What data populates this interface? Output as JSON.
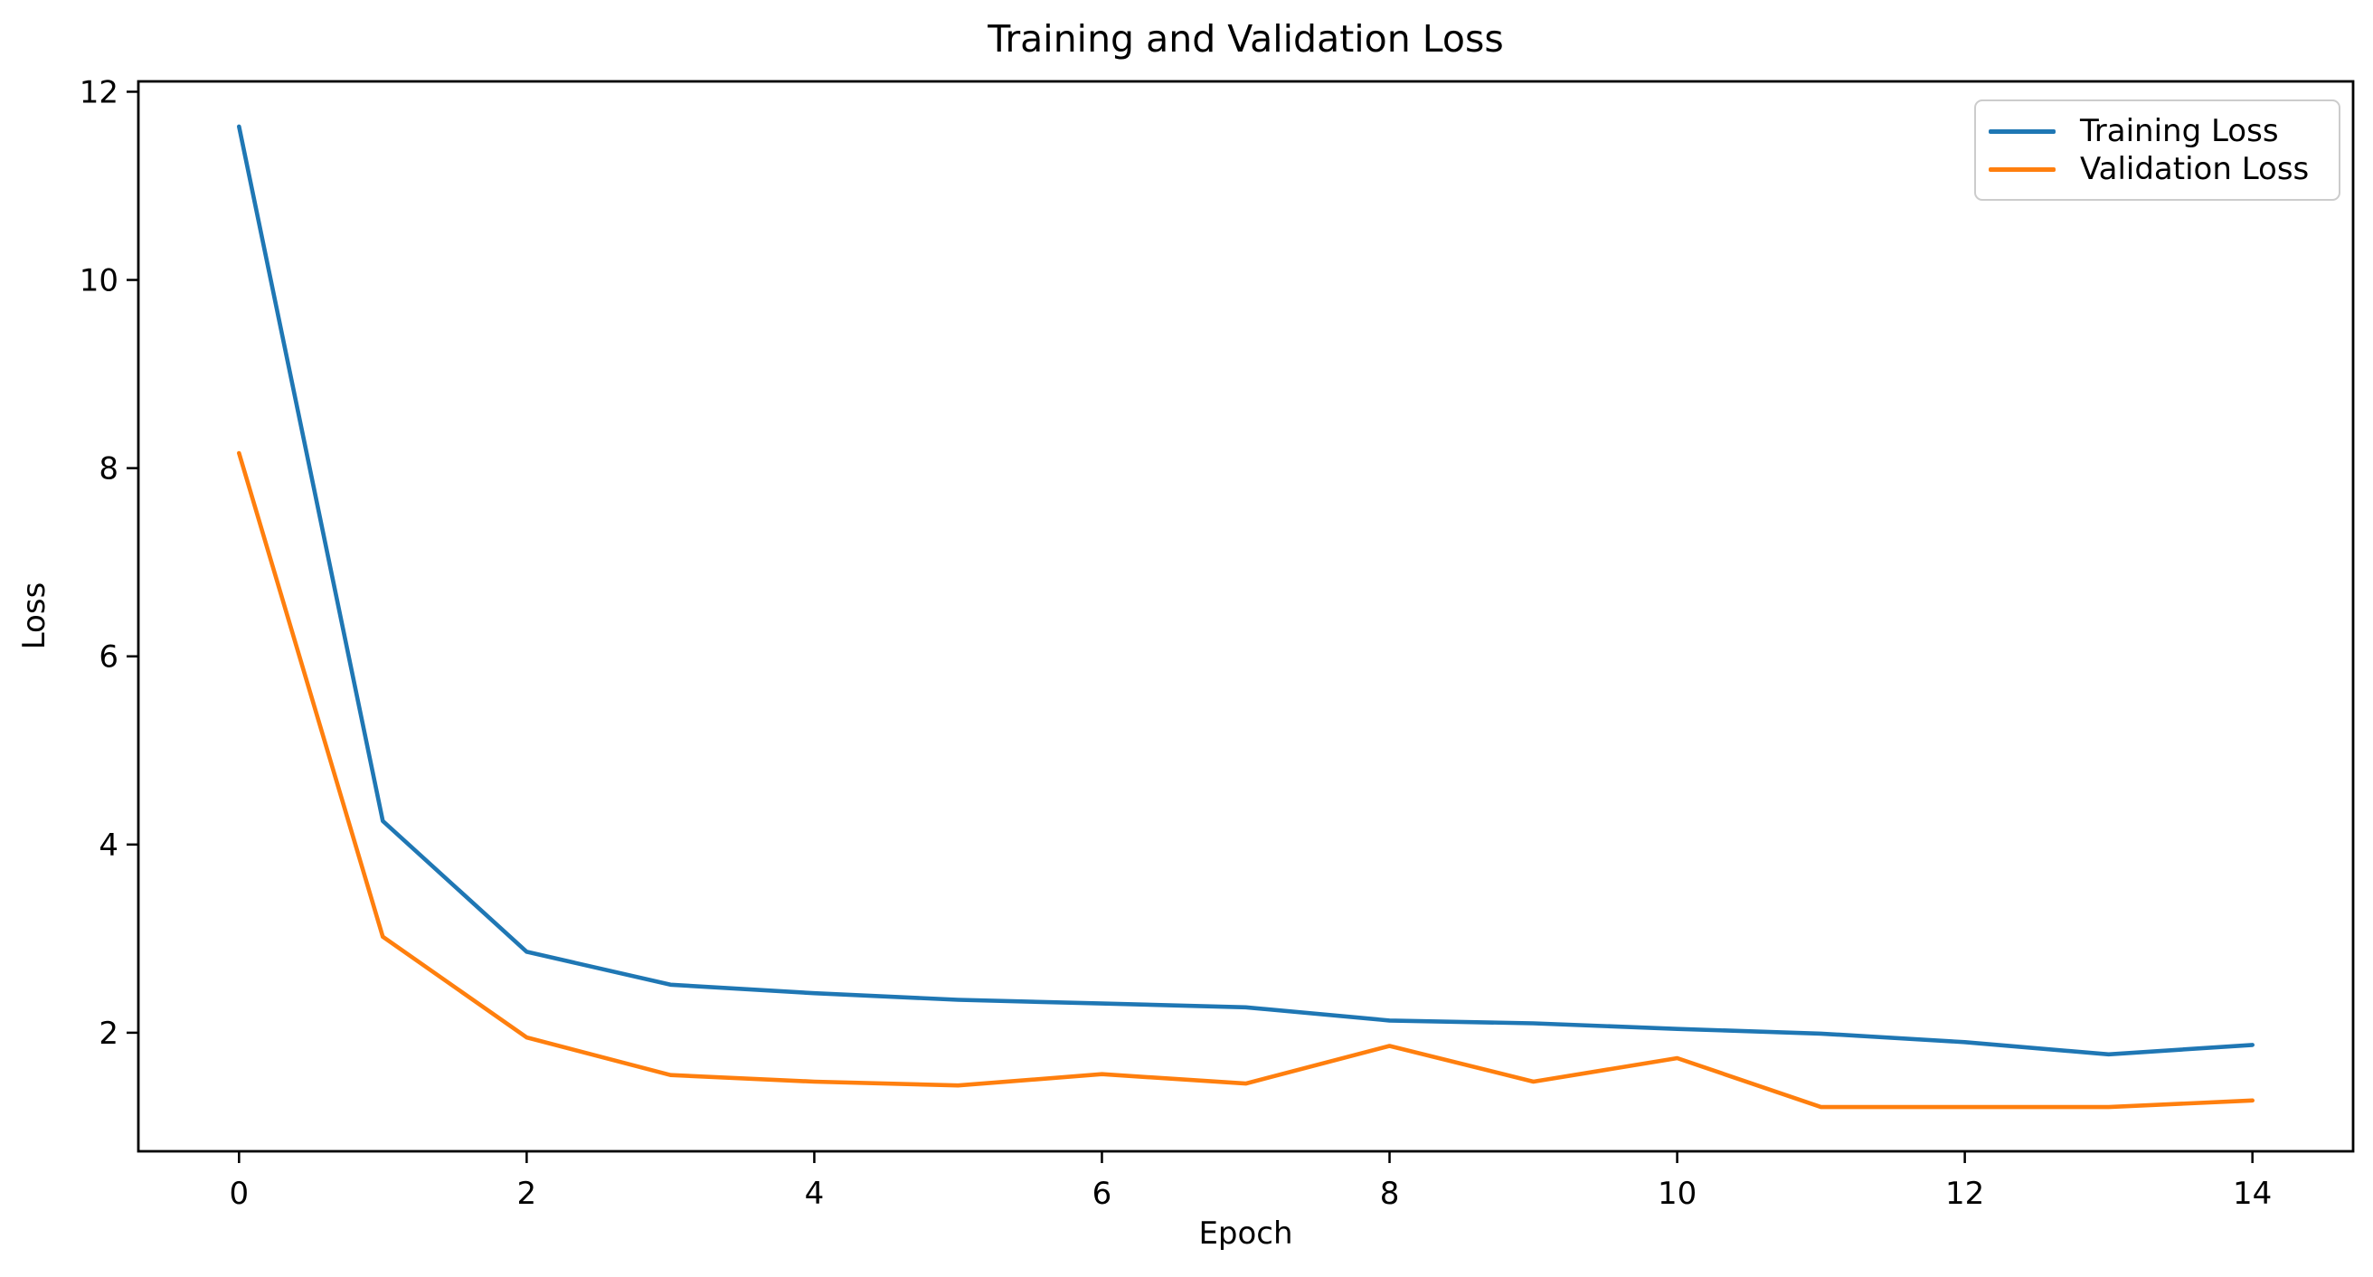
{
  "figure": {
    "background_color": "#ffffff",
    "text_color": "#000000"
  },
  "chart_data": {
    "type": "line",
    "title": "Training and Validation Loss",
    "xlabel": "Epoch",
    "ylabel": "Loss",
    "x": [
      0,
      1,
      2,
      3,
      4,
      5,
      6,
      7,
      8,
      9,
      10,
      11,
      12,
      13,
      14
    ],
    "series": [
      {
        "name": "Training Loss",
        "color": "#1f77b4",
        "values": [
          11.63,
          4.25,
          2.86,
          2.51,
          2.42,
          2.35,
          2.31,
          2.27,
          2.13,
          2.1,
          2.04,
          1.99,
          1.9,
          1.77,
          1.87
        ]
      },
      {
        "name": "Validation Loss",
        "color": "#ff7f0e",
        "values": [
          8.16,
          3.02,
          1.95,
          1.55,
          1.48,
          1.44,
          1.56,
          1.46,
          1.86,
          1.48,
          1.73,
          1.21,
          1.21,
          1.21,
          1.28
        ]
      }
    ],
    "xticks": [
      0,
      2,
      4,
      6,
      8,
      10,
      12,
      14
    ],
    "yticks": [
      2,
      4,
      6,
      8,
      10,
      12
    ],
    "xlim": [
      -0.7,
      14.7
    ],
    "ylim": [
      0.74,
      12.11
    ],
    "grid": false,
    "markers": false,
    "legend_position": "upper right",
    "colors": {
      "axis": "#000000",
      "legend_border": "#cccccc",
      "background": "#ffffff"
    }
  }
}
